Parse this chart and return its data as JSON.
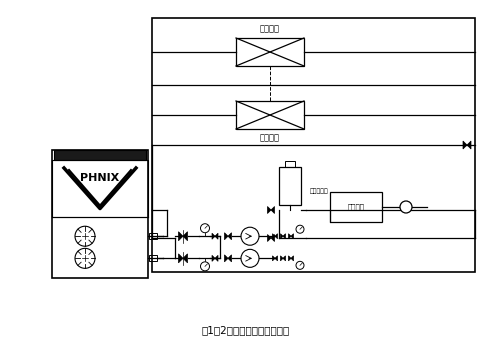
{
  "title": "图1－2闭式膨胀定压罐的安装",
  "title_fontsize": 7,
  "bg_color": "#ffffff",
  "line_color": "#000000",
  "text_color": "#000000",
  "fan_coil_top_label": "末端风盘",
  "fan_coil_bottom_label": "末端风盘",
  "chiller_label": "PHNIX",
  "expansion_label": "膨胀定压罐",
  "control_label": "控制模块"
}
